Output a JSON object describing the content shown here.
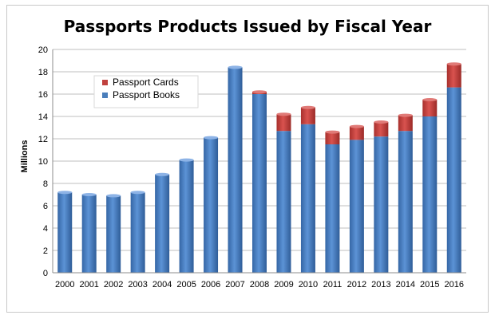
{
  "chart_data": {
    "type": "bar",
    "stacked": true,
    "title": "Passports Products Issued by Fiscal Year",
    "xlabel": "",
    "ylabel": "Millions",
    "ylim": [
      0,
      20
    ],
    "ytick_step": 2,
    "grid": true,
    "legend_position": "upper-left",
    "categories": [
      "2000",
      "2001",
      "2002",
      "2003",
      "2004",
      "2005",
      "2006",
      "2007",
      "2008",
      "2009",
      "2010",
      "2011",
      "2012",
      "2013",
      "2014",
      "2015",
      "2016"
    ],
    "series": [
      {
        "name": "Passport Books",
        "color": "#4a7ebb",
        "values": [
          7.2,
          7.0,
          6.9,
          7.2,
          8.8,
          10.1,
          12.1,
          18.4,
          16.0,
          12.7,
          13.3,
          11.5,
          11.9,
          12.2,
          12.7,
          14.0,
          16.6
        ]
      },
      {
        "name": "Passport Cards",
        "color": "#c0413e",
        "values": [
          0,
          0,
          0,
          0,
          0,
          0,
          0,
          0,
          0.2,
          1.5,
          1.5,
          1.1,
          1.2,
          1.3,
          1.4,
          1.5,
          2.1
        ]
      }
    ]
  }
}
